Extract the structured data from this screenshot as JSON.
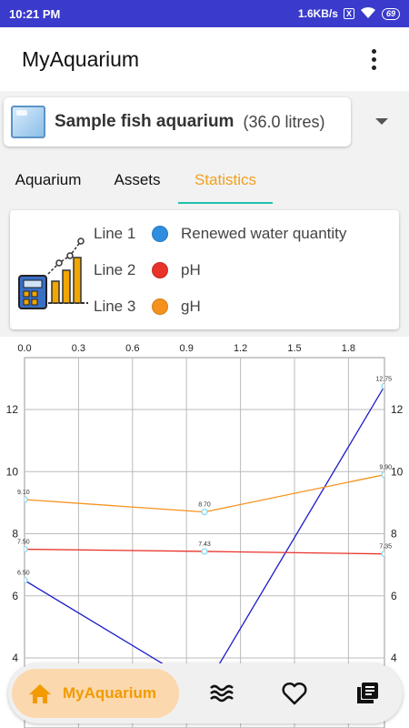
{
  "status_bar": {
    "time": "10:21 PM",
    "speed": "1.6KB/s",
    "sim_indicator": "X",
    "battery": "69"
  },
  "app_bar": {
    "title": "MyAquarium",
    "menu_icon": "more-vert-icon"
  },
  "aquarium_selector": {
    "icon": "aquarium-tank-icon",
    "name": "Sample fish aquarium",
    "volume": "(36.0 litres)"
  },
  "tabs": [
    {
      "label": "Aquarium",
      "selected": false
    },
    {
      "label": "Assets",
      "selected": false
    },
    {
      "label": "Statistics",
      "selected": true
    }
  ],
  "legend": {
    "icon": "statistics-chart-icon",
    "items": [
      {
        "line": "Line 1",
        "label": "Renewed water quantity",
        "color": "#2f8ee0"
      },
      {
        "line": "Line 2",
        "label": "pH",
        "color": "#e8322a"
      },
      {
        "line": "Line 3",
        "label": "gH",
        "color": "#f5921e"
      }
    ]
  },
  "chart_data": {
    "type": "line",
    "x_ticks_top": [
      "0.0",
      "0.3",
      "0.6",
      "0.9",
      "1.2",
      "1.5",
      "1.8"
    ],
    "y_ticks": [
      "12",
      "10",
      "8",
      "6",
      "4"
    ],
    "xlim": [
      0,
      2
    ],
    "ylim_visible": [
      4,
      13.2
    ],
    "series": [
      {
        "name": "Line 1",
        "color": "#1a1acc",
        "x": [
          0,
          1,
          2
        ],
        "y": [
          6.5,
          3.0,
          12.75
        ],
        "labels": [
          "6.50",
          "",
          "12.75"
        ]
      },
      {
        "name": "Line 2",
        "color": "#e8322a",
        "x": [
          0,
          1,
          2
        ],
        "y": [
          7.5,
          7.43,
          7.35
        ],
        "labels": [
          "7.50",
          "7.43",
          "7.35"
        ]
      },
      {
        "name": "Line 3",
        "color": "#f5921e",
        "x": [
          0,
          1,
          2
        ],
        "y": [
          9.1,
          8.7,
          9.9
        ],
        "labels": [
          "9.10",
          "8.70",
          "9.90"
        ]
      }
    ],
    "marker_color": "#7fd8f0",
    "grid": true
  },
  "bottom_nav": {
    "home_label": "MyAquarium",
    "home_icon": "home-icon",
    "items": [
      "water-waves-icon",
      "heart-icon",
      "book-icon"
    ]
  },
  "colors": {
    "status_bar": "#3a3acc",
    "accent": "#f29a00",
    "tab_indicator": "#20c0b0"
  }
}
